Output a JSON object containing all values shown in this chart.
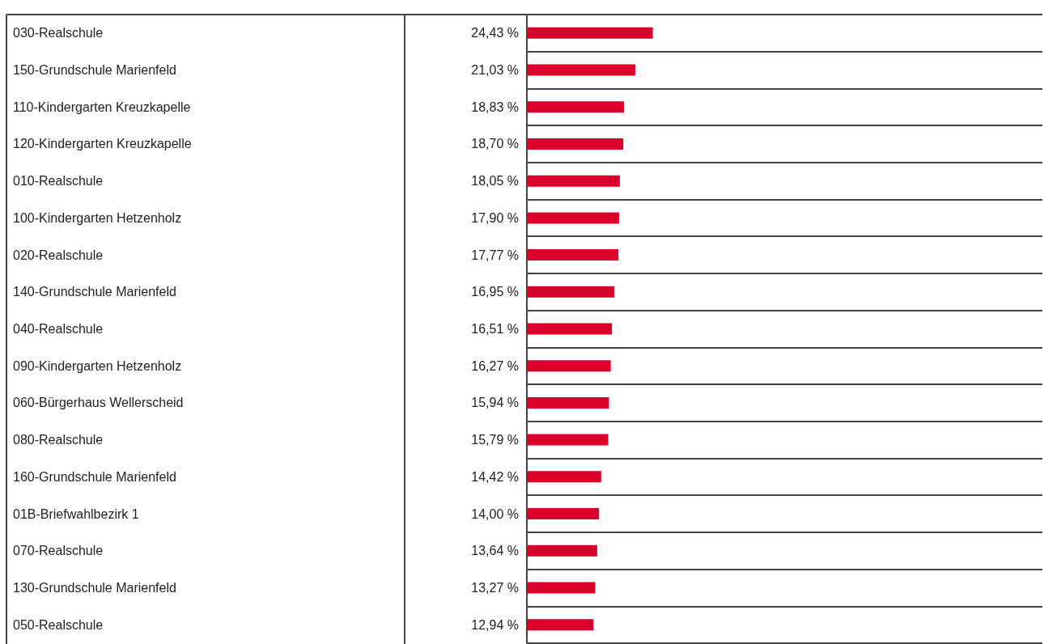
{
  "chart_data": {
    "type": "bar",
    "orientation": "horizontal",
    "categories": [
      "030-Realschule",
      "150-Grundschule Marienfeld",
      "110-Kindergarten Kreuzkapelle",
      "120-Kindergarten Kreuzkapelle",
      "010-Realschule",
      "100-Kindergarten Hetzenholz",
      "020-Realschule",
      "140-Grundschule Marienfeld",
      "040-Realschule",
      "090-Kindergarten Hetzenholz",
      "060-Bürgerhaus Wellerscheid",
      "080-Realschule",
      "160-Grundschule Marienfeld",
      "01B-Briefwahlbezirk 1",
      "070-Realschule",
      "130-Grundschule Marienfeld",
      "050-Realschule"
    ],
    "values": [
      24.43,
      21.03,
      18.83,
      18.7,
      18.05,
      17.9,
      17.77,
      16.95,
      16.51,
      16.27,
      15.94,
      15.79,
      14.42,
      14.0,
      13.64,
      13.27,
      12.94
    ],
    "value_labels": [
      "24,43 %",
      "21,03 %",
      "18,83 %",
      "18,70 %",
      "18,05 %",
      "17,90 %",
      "17,77 %",
      "16,95 %",
      "16,51 %",
      "16,27 %",
      "15,94 %",
      "15,79 %",
      "14,42 %",
      "14,00 %",
      "13,64 %",
      "13,27 %",
      "12,94 %"
    ],
    "color": "#d9002b",
    "xlim": [
      0,
      100
    ],
    "grid": "y",
    "tick_labels": "y"
  }
}
